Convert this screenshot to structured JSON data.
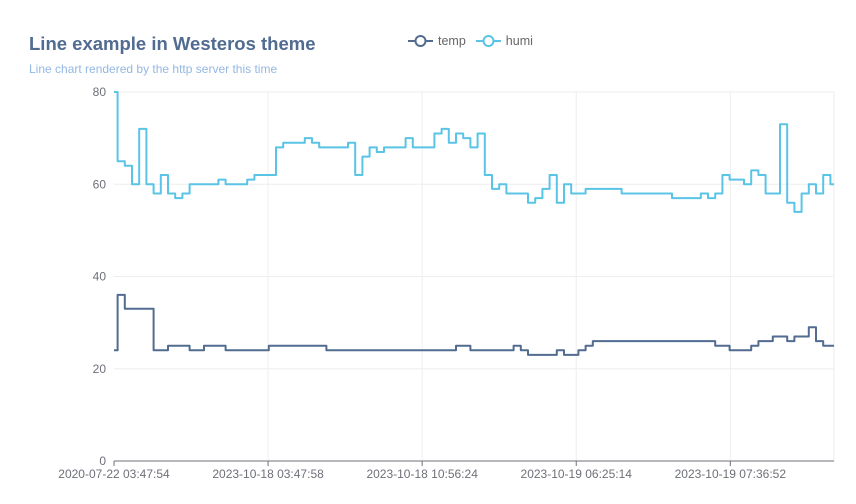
{
  "title": "Line example in Westeros theme",
  "subtitle": "Line chart rendered by the http server this time",
  "colors": {
    "temp": "#516b91",
    "humi": "#59c4e6",
    "title": "#516b91",
    "subtitle": "#93b7e3"
  },
  "chart_data": {
    "type": "line",
    "title": "Line example in Westeros theme",
    "subtitle": "Line chart rendered by the http server this time",
    "xlabel": "",
    "ylabel": "",
    "ylim": [
      0,
      80
    ],
    "yticks": [
      0,
      20,
      40,
      60,
      80
    ],
    "xtick_labels": [
      "2020-07-22 03:47:54",
      "2023-10-18 03:47:58",
      "2023-10-18 10:56:24",
      "2023-10-19 06:25:14",
      "2023-10-19 07:36:52"
    ],
    "legend_position": "top",
    "grid": true,
    "x_count": 101,
    "series": [
      {
        "name": "temp",
        "color": "#516b91",
        "values": [
          24,
          36,
          33,
          33,
          33,
          33,
          24,
          24,
          25,
          25,
          25,
          24,
          24,
          25,
          25,
          25,
          24,
          24,
          24,
          24,
          24,
          24,
          25,
          25,
          25,
          25,
          25,
          25,
          25,
          25,
          24,
          24,
          24,
          24,
          24,
          24,
          24,
          24,
          24,
          24,
          24,
          24,
          24,
          24,
          24,
          24,
          24,
          24,
          25,
          25,
          24,
          24,
          24,
          24,
          24,
          24,
          25,
          24,
          23,
          23,
          23,
          23,
          24,
          23,
          23,
          24,
          25,
          26,
          26,
          26,
          26,
          26,
          26,
          26,
          26,
          26,
          26,
          26,
          26,
          26,
          26,
          26,
          26,
          26,
          25,
          25,
          24,
          24,
          24,
          25,
          26,
          26,
          27,
          27,
          26,
          27,
          27,
          29,
          26,
          25,
          25
        ]
      },
      {
        "name": "humi",
        "color": "#59c4e6",
        "values": [
          80,
          65,
          64,
          60,
          72,
          60,
          58,
          62,
          58,
          57,
          58,
          60,
          60,
          60,
          60,
          61,
          60,
          60,
          60,
          61,
          62,
          62,
          62,
          68,
          69,
          69,
          69,
          70,
          69,
          68,
          68,
          68,
          68,
          69,
          62,
          66,
          68,
          67,
          68,
          68,
          68,
          70,
          68,
          68,
          68,
          71,
          72,
          69,
          71,
          70,
          68,
          71,
          62,
          59,
          60,
          58,
          58,
          58,
          56,
          57,
          59,
          62,
          56,
          60,
          58,
          58,
          59,
          59,
          59,
          59,
          59,
          58,
          58,
          58,
          58,
          58,
          58,
          58,
          57,
          57,
          57,
          57,
          58,
          57,
          58,
          62,
          61,
          61,
          60,
          63,
          62,
          58,
          58,
          73,
          56,
          54,
          58,
          60,
          58,
          62,
          60
        ]
      }
    ]
  },
  "legend": [
    {
      "label": "temp",
      "color": "#516b91"
    },
    {
      "label": "humi",
      "color": "#59c4e6"
    }
  ]
}
